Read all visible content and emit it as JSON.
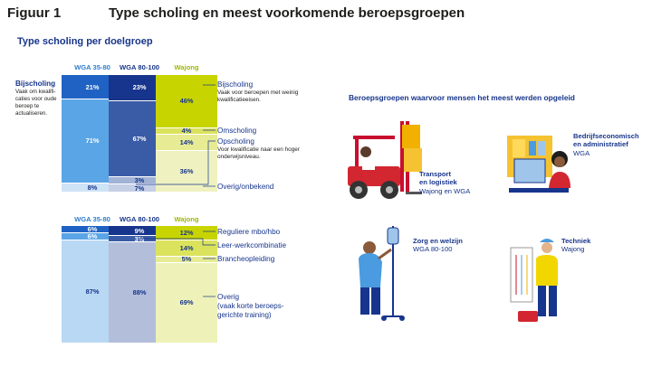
{
  "figure_label": "Figuur 1",
  "figure_title": "Type scholing en meest voorkomende beroepsgroepen",
  "subtitle": "Type scholing per doelgroep",
  "colors": {
    "wga3580": "#3b8fd9",
    "wga80100": "#17358c",
    "wajong": "#c8d400",
    "navy": "#17358c"
  },
  "chart_data": [
    {
      "type": "bar",
      "stacked": true,
      "title": "Type scholing per doelgroep",
      "categories": [
        "WGA 35-80",
        "WGA 80-100",
        "Wajong"
      ],
      "series": [
        {
          "name": "Bijscholing",
          "values": [
            21,
            23,
            46
          ]
        },
        {
          "name": "Omscholing",
          "values": [
            71,
            67,
            4
          ]
        },
        {
          "name": "Opscholing",
          "values": [
            null,
            3,
            14
          ]
        },
        {
          "name": "Overig/onbekend",
          "values": [
            8,
            7,
            36
          ]
        }
      ],
      "value_labels": [
        [
          "21%",
          "71%",
          "",
          "8%"
        ],
        [
          "23%",
          "67%",
          "3%",
          "7%"
        ],
        [
          "46%",
          "4%",
          "14%",
          "36%"
        ]
      ],
      "legend": {
        "bijscholing": "Bijscholing",
        "bijscholing_note_left": "Vaak om kwalifi- caties voor oude beroep te actualiseren.",
        "bijscholing_note_right": "Vaak voor beroepen met weinig kwalificatieeisen.",
        "omscholing": "Omscholing",
        "opscholing": "Opscholing",
        "opscholing_note": "Voor kwalificatie naar een hoger onderwijsniveau.",
        "overig": "Overig/onbekend"
      }
    },
    {
      "type": "bar",
      "stacked": true,
      "categories": [
        "WGA 35-80",
        "WGA 80-100",
        "Wajong"
      ],
      "series": [
        {
          "name": "Reguliere mbo/hbo",
          "values": [
            6,
            9,
            12
          ]
        },
        {
          "name": "Leer-werkcombinatie",
          "values": [
            6,
            3,
            14
          ]
        },
        {
          "name": "Brancheopleiding",
          "values": [
            null,
            null,
            5
          ]
        },
        {
          "name": "Overig (vaak korte beroeps-gerichte training)",
          "values": [
            87,
            88,
            69
          ]
        }
      ],
      "value_labels": [
        [
          "6%",
          "6%",
          "",
          "87%"
        ],
        [
          "9%",
          "3%",
          "",
          "88%"
        ],
        [
          "12%",
          "14%",
          "5%",
          "69%"
        ]
      ],
      "legend": {
        "regulier": "Reguliere mbo/hbo",
        "leerwerk": "Leer-werkcombinatie",
        "branche": "Brancheopleiding",
        "overig": "Overig",
        "overig_note": "(vaak korte beroeps- gerichte training)"
      }
    }
  ],
  "occupations": {
    "title": "Beroepsgroepen waarvoor mensen het meest werden opgeleid",
    "items": [
      {
        "name": "Transport en logistiek",
        "line1": "Transport",
        "line2": "en logistiek",
        "groups": "Wajong en WGA",
        "icon": "forklift-icon"
      },
      {
        "name": "Bedrijfseconomisch en administratief",
        "line1": "Bedrijfseconomisch",
        "line2": "en administratief",
        "groups": "WGA",
        "icon": "office-worker-icon"
      },
      {
        "name": "Zorg en welzijn",
        "line1": "Zorg en welzijn",
        "line2": "",
        "groups": "WGA 80-100",
        "icon": "nurse-iv-icon"
      },
      {
        "name": "Techniek",
        "line1": "Techniek",
        "line2": "",
        "groups": "Wajong",
        "icon": "technician-icon"
      }
    ]
  }
}
